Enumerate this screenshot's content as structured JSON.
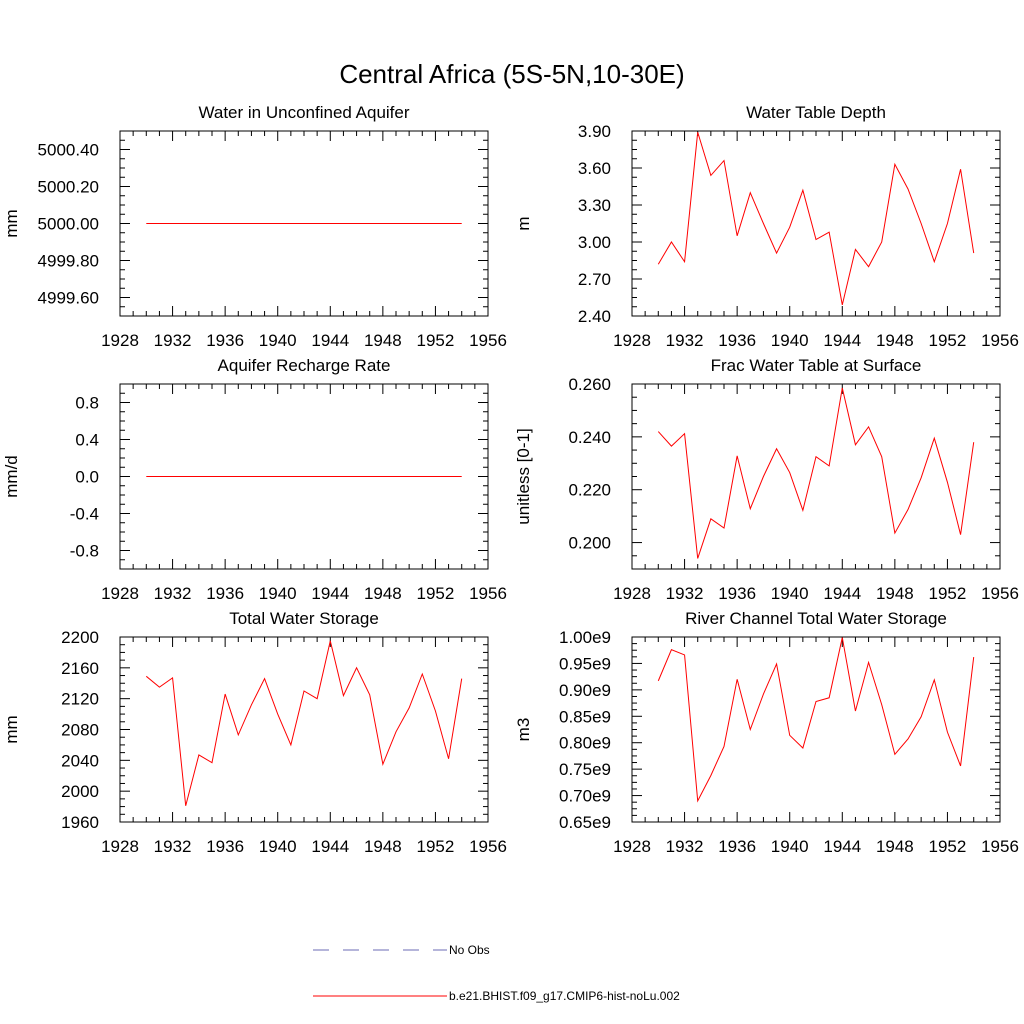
{
  "figure": {
    "title": "Central Africa (5S-5N,10-30E)"
  },
  "colors": {
    "series": "#ff0000",
    "obs": "#6b6bb5",
    "axis": "#000000"
  },
  "legend": {
    "placement": "bottom-center",
    "items": [
      {
        "label": "No Obs",
        "style": "dashed",
        "color": "#6b6bb5"
      },
      {
        "label": "b.e21.BHIST.f09_g17.CMIP6-hist-noLu.002",
        "style": "solid",
        "color": "#ff0000"
      }
    ]
  },
  "chart_data": [
    {
      "type": "line",
      "title": "Water in Unconfined Aquifer",
      "ylabel": "mm",
      "xlim": [
        1928,
        1956
      ],
      "ylim": [
        4999.5,
        5000.5
      ],
      "xticks": [
        1928,
        1932,
        1936,
        1940,
        1944,
        1948,
        1952,
        1956
      ],
      "yticks": [
        4999.6,
        4999.8,
        5000.0,
        5000.2,
        5000.4
      ],
      "ytick_labels": [
        "4999.60",
        "4999.80",
        "5000.00",
        "5000.20",
        "5000.40"
      ],
      "yminor": 0.05,
      "x": [
        1930,
        1931,
        1932,
        1933,
        1934,
        1935,
        1936,
        1937,
        1938,
        1939,
        1940,
        1941,
        1942,
        1943,
        1944,
        1945,
        1946,
        1947,
        1948,
        1949,
        1950,
        1951,
        1952,
        1953,
        1954
      ],
      "series": [
        {
          "values": [
            5000,
            5000,
            5000,
            5000,
            5000,
            5000,
            5000,
            5000,
            5000,
            5000,
            5000,
            5000,
            5000,
            5000,
            5000,
            5000,
            5000,
            5000,
            5000,
            5000,
            5000,
            5000,
            5000,
            5000,
            5000
          ]
        }
      ]
    },
    {
      "type": "line",
      "title": "Water Table Depth",
      "ylabel": "m",
      "xlim": [
        1928,
        1956
      ],
      "ylim": [
        2.4,
        3.9
      ],
      "xticks": [
        1928,
        1932,
        1936,
        1940,
        1944,
        1948,
        1952,
        1956
      ],
      "yticks": [
        2.4,
        2.7,
        3.0,
        3.3,
        3.6,
        3.9
      ],
      "ytick_labels": [
        "2.40",
        "2.70",
        "3.00",
        "3.30",
        "3.60",
        "3.90"
      ],
      "yminor": 0.075,
      "x": [
        1930,
        1931,
        1932,
        1933,
        1934,
        1935,
        1936,
        1937,
        1938,
        1939,
        1940,
        1941,
        1942,
        1943,
        1944,
        1945,
        1946,
        1947,
        1948,
        1949,
        1950,
        1951,
        1952,
        1953,
        1954
      ],
      "series": [
        {
          "values": [
            2.82,
            3.0,
            2.84,
            3.89,
            3.54,
            3.66,
            3.05,
            3.4,
            3.15,
            2.91,
            3.12,
            3.42,
            3.02,
            3.08,
            2.49,
            2.94,
            2.8,
            3.0,
            3.63,
            3.43,
            3.15,
            2.84,
            3.15,
            3.59,
            2.91
          ]
        }
      ]
    },
    {
      "type": "line",
      "title": "Aquifer Recharge Rate",
      "ylabel": "mm/d",
      "xlim": [
        1928,
        1956
      ],
      "ylim": [
        -1.0,
        1.0
      ],
      "xticks": [
        1928,
        1932,
        1936,
        1940,
        1944,
        1948,
        1952,
        1956
      ],
      "yticks": [
        -0.8,
        -0.4,
        0.0,
        0.4,
        0.8
      ],
      "ytick_labels": [
        "-0.8",
        "-0.4",
        "0.0",
        "0.4",
        "0.8"
      ],
      "yminor": 0.1,
      "x": [
        1930,
        1931,
        1932,
        1933,
        1934,
        1935,
        1936,
        1937,
        1938,
        1939,
        1940,
        1941,
        1942,
        1943,
        1944,
        1945,
        1946,
        1947,
        1948,
        1949,
        1950,
        1951,
        1952,
        1953,
        1954
      ],
      "series": [
        {
          "values": [
            0,
            0,
            0,
            0,
            0,
            0,
            0,
            0,
            0,
            0,
            0,
            0,
            0,
            0,
            0,
            0,
            0,
            0,
            0,
            0,
            0,
            0,
            0,
            0,
            0
          ]
        }
      ]
    },
    {
      "type": "line",
      "title": "Frac Water Table at Surface",
      "ylabel": "unitless [0-1]",
      "xlim": [
        1928,
        1956
      ],
      "ylim": [
        0.19,
        0.26
      ],
      "xticks": [
        1928,
        1932,
        1936,
        1940,
        1944,
        1948,
        1952,
        1956
      ],
      "yticks": [
        0.2,
        0.22,
        0.24,
        0.26
      ],
      "ytick_labels": [
        "0.200",
        "0.220",
        "0.240",
        "0.260"
      ],
      "yminor": 0.005,
      "x": [
        1930,
        1931,
        1932,
        1933,
        1934,
        1935,
        1936,
        1937,
        1938,
        1939,
        1940,
        1941,
        1942,
        1943,
        1944,
        1945,
        1946,
        1947,
        1948,
        1949,
        1950,
        1951,
        1952,
        1953,
        1954
      ],
      "series": [
        {
          "values": [
            0.242,
            0.2365,
            0.2412,
            0.194,
            0.209,
            0.2055,
            0.2328,
            0.2128,
            0.225,
            0.2355,
            0.2265,
            0.2122,
            0.2325,
            0.229,
            0.2585,
            0.237,
            0.2438,
            0.2325,
            0.2036,
            0.2125,
            0.2245,
            0.2395,
            0.2228,
            0.203,
            0.238
          ]
        }
      ]
    },
    {
      "type": "line",
      "title": "Total Water Storage",
      "ylabel": "mm",
      "xlim": [
        1928,
        1956
      ],
      "ylim": [
        1960,
        2200
      ],
      "xticks": [
        1928,
        1932,
        1936,
        1940,
        1944,
        1948,
        1952,
        1956
      ],
      "yticks": [
        1960,
        2000,
        2040,
        2080,
        2120,
        2160,
        2200
      ],
      "ytick_labels": [
        "1960",
        "2000",
        "2040",
        "2080",
        "2120",
        "2160",
        "2200"
      ],
      "yminor": 10,
      "x": [
        1930,
        1931,
        1932,
        1933,
        1934,
        1935,
        1936,
        1937,
        1938,
        1939,
        1940,
        1941,
        1942,
        1943,
        1944,
        1945,
        1946,
        1947,
        1948,
        1949,
        1950,
        1951,
        1952,
        1953,
        1954
      ],
      "series": [
        {
          "values": [
            2149,
            2135,
            2147,
            1981,
            2047,
            2037,
            2126,
            2073,
            2112,
            2146,
            2100,
            2060,
            2130,
            2120,
            2195,
            2124,
            2160,
            2125,
            2035,
            2077,
            2108,
            2152,
            2104,
            2042,
            2146
          ]
        }
      ]
    },
    {
      "type": "line",
      "title": "River Channel Total Water Storage",
      "ylabel": "m3",
      "xlim": [
        1928,
        1956
      ],
      "ylim": [
        650000000.0,
        1000000000.0
      ],
      "xticks": [
        1928,
        1932,
        1936,
        1940,
        1944,
        1948,
        1952,
        1956
      ],
      "yticks": [
        650000000.0,
        700000000.0,
        750000000.0,
        800000000.0,
        850000000.0,
        900000000.0,
        950000000.0,
        1000000000.0
      ],
      "ytick_labels": [
        "0.65e9",
        "0.70e9",
        "0.75e9",
        "0.80e9",
        "0.85e9",
        "0.90e9",
        "0.95e9",
        "1.00e9"
      ],
      "yminor": 12500000.0,
      "x": [
        1930,
        1931,
        1932,
        1933,
        1934,
        1935,
        1936,
        1937,
        1938,
        1939,
        1940,
        1941,
        1942,
        1943,
        1944,
        1945,
        1946,
        1947,
        1948,
        1949,
        1950,
        1951,
        1952,
        1953,
        1954
      ],
      "series": [
        {
          "values": [
            917000000.0,
            976000000.0,
            966000000.0,
            690000000.0,
            738000000.0,
            793000000.0,
            920000000.0,
            825000000.0,
            892000000.0,
            949000000.0,
            814000000.0,
            790000000.0,
            878000000.0,
            885000000.0,
            999000000.0,
            860000000.0,
            952000000.0,
            872000000.0,
            778000000.0,
            807000000.0,
            849000000.0,
            919000000.0,
            820000000.0,
            756000000.0,
            962000000.0
          ]
        }
      ]
    }
  ]
}
